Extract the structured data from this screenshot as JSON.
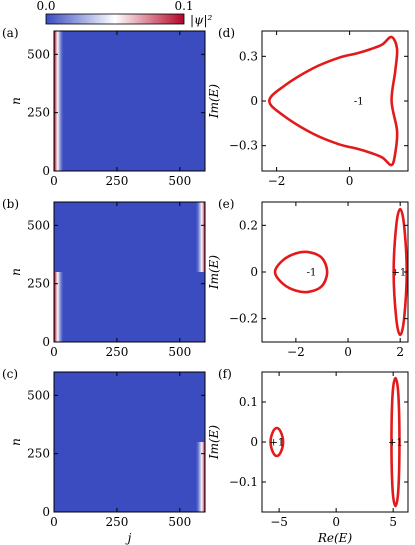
{
  "colorbar": {
    "min_label": "0.0",
    "max_label": "0.1",
    "quantity_label": "|ψ|²",
    "colors": {
      "low": "#3b4cc0",
      "mid": "#ffffff",
      "high": "#b40426"
    }
  },
  "chart_data": [
    {
      "id": "a",
      "panel_label": "(a)",
      "type": "heatmap",
      "xlabel": "",
      "ylabel": "n",
      "xlim": [
        0,
        600
      ],
      "ylim": [
        0,
        600
      ],
      "xticks": [
        0,
        250,
        500
      ],
      "yticks": [
        0,
        250,
        500
      ],
      "xtick_labels": [
        "0",
        "250",
        "500"
      ],
      "ytick_labels": [
        "0",
        "250",
        "500"
      ],
      "background_value": 0.0,
      "edge_localization": [
        {
          "j_range": [
            0,
            40
          ],
          "n_range": [
            0,
            600
          ],
          "peak_value": 0.1
        }
      ]
    },
    {
      "id": "b",
      "panel_label": "(b)",
      "type": "heatmap",
      "xlabel": "",
      "ylabel": "n",
      "xlim": [
        0,
        600
      ],
      "ylim": [
        0,
        600
      ],
      "xticks": [
        0,
        250,
        500
      ],
      "yticks": [
        0,
        250,
        500
      ],
      "xtick_labels": [
        "0",
        "250",
        "500"
      ],
      "ytick_labels": [
        "0",
        "250",
        "500"
      ],
      "background_value": 0.0,
      "edge_localization": [
        {
          "j_range": [
            0,
            40
          ],
          "n_range": [
            0,
            300
          ],
          "peak_value": 0.1
        },
        {
          "j_range": [
            560,
            600
          ],
          "n_range": [
            300,
            600
          ],
          "peak_value": 0.1
        }
      ]
    },
    {
      "id": "c",
      "panel_label": "(c)",
      "type": "heatmap",
      "xlabel": "j",
      "ylabel": "n",
      "xlim": [
        0,
        600
      ],
      "ylim": [
        0,
        600
      ],
      "xticks": [
        0,
        250,
        500
      ],
      "yticks": [
        0,
        250,
        500
      ],
      "xtick_labels": [
        "0",
        "250",
        "500"
      ],
      "ytick_labels": [
        "0",
        "250",
        "500"
      ],
      "background_value": 0.0,
      "edge_localization": [
        {
          "j_range": [
            560,
            600
          ],
          "n_range": [
            0,
            300
          ],
          "peak_value": 0.1
        }
      ]
    },
    {
      "id": "d",
      "panel_label": "(d)",
      "type": "line",
      "xlabel": "",
      "ylabel": "Im(E)",
      "xlim": [
        -2.4,
        1.6
      ],
      "ylim": [
        -0.47,
        0.47
      ],
      "xticks": [
        -2,
        0
      ],
      "yticks": [
        -0.3,
        0,
        0.3
      ],
      "xtick_labels": [
        "−2",
        "0"
      ],
      "ytick_labels": [
        "−0.3",
        "0",
        "0.3"
      ],
      "series": [
        {
          "color": "#e31a1c",
          "x": [
            -2.2,
            -1.8,
            -1.0,
            -0.3,
            0.2,
            0.6,
            0.9,
            1.15,
            1.3,
            1.25,
            1.15,
            1.3,
            1.25,
            1.15,
            0.9,
            0.6,
            0.2,
            -0.3,
            -1.0,
            -1.8,
            -2.2
          ],
          "y": [
            0,
            0.1,
            0.22,
            0.29,
            0.32,
            0.35,
            0.38,
            0.43,
            0.35,
            0.2,
            0,
            -0.2,
            -0.35,
            -0.43,
            -0.38,
            -0.35,
            -0.32,
            -0.29,
            -0.22,
            -0.1,
            0
          ]
        }
      ],
      "annotations": [
        {
          "text": "-1",
          "x": 0.25,
          "y": 0.0
        }
      ]
    },
    {
      "id": "e",
      "panel_label": "(e)",
      "type": "line",
      "xlabel": "",
      "ylabel": "Im(E)",
      "xlim": [
        -3.3,
        2.3
      ],
      "ylim": [
        -0.3,
        0.3
      ],
      "xticks": [
        -2,
        0,
        2
      ],
      "yticks": [
        -0.2,
        0,
        0.2
      ],
      "xtick_labels": [
        "−2",
        "0",
        "2"
      ],
      "ytick_labels": [
        "−0.2",
        "0",
        "0.2"
      ],
      "series": [
        {
          "color": "#e31a1c",
          "x": [
            -2.8,
            -2.5,
            -2.0,
            -1.5,
            -1.0,
            -0.8,
            -1.0,
            -1.5,
            -2.0,
            -2.5,
            -2.8
          ],
          "y": [
            0,
            0.05,
            0.08,
            0.085,
            0.06,
            0,
            -0.06,
            -0.085,
            -0.08,
            -0.05,
            0
          ]
        },
        {
          "color": "#e31a1c",
          "x": [
            2.0,
            2.15,
            2.25,
            2.15,
            2.0,
            1.85,
            1.75,
            1.85,
            2.0
          ],
          "y": [
            0.27,
            0.2,
            0,
            -0.2,
            -0.27,
            -0.2,
            0,
            0.2,
            0.27
          ]
        }
      ],
      "annotations": [
        {
          "text": "-1",
          "x": -1.4,
          "y": 0.0
        },
        {
          "text": "+1",
          "x": 1.95,
          "y": 0.0
        }
      ]
    },
    {
      "id": "f",
      "panel_label": "(f)",
      "type": "line",
      "xlabel": "Re(E)",
      "ylabel": "Im(E)",
      "xlim": [
        -6.5,
        6.3
      ],
      "ylim": [
        -0.175,
        0.175
      ],
      "xticks": [
        -5,
        0,
        5
      ],
      "yticks": [
        -0.1,
        0,
        0.1
      ],
      "xtick_labels": [
        "−5",
        "0",
        "5"
      ],
      "ytick_labels": [
        "−0.1",
        "0",
        "0.1"
      ],
      "series": [
        {
          "color": "#e31a1c",
          "x": [
            -5.2,
            -4.85,
            -4.65,
            -4.85,
            -5.2,
            -5.55,
            -5.75,
            -5.55,
            -5.2
          ],
          "y": [
            0.035,
            0.025,
            0,
            -0.025,
            -0.035,
            -0.025,
            0,
            0.025,
            0.035
          ]
        },
        {
          "color": "#e31a1c",
          "x": [
            5.2,
            5.45,
            5.55,
            5.45,
            5.2,
            4.95,
            4.85,
            4.95,
            5.2
          ],
          "y": [
            0.16,
            0.12,
            0,
            -0.12,
            -0.16,
            -0.12,
            0,
            0.12,
            0.16
          ]
        }
      ],
      "annotations": [
        {
          "text": "+1",
          "x": -5.2,
          "y": 0.0
        },
        {
          "text": "+1",
          "x": 5.2,
          "y": 0.0
        }
      ]
    }
  ]
}
